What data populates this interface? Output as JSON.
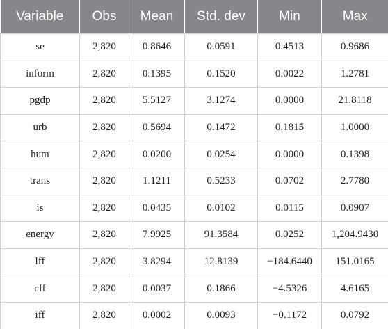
{
  "table": {
    "header": [
      "Variable",
      "Obs",
      "Mean",
      "Std. dev",
      "Min",
      "Max"
    ],
    "rows": [
      [
        "se",
        "2,820",
        "0.8646",
        "0.0591",
        "0.4513",
        "0.9686"
      ],
      [
        "inform",
        "2,820",
        "0.1395",
        "0.1520",
        "0.0022",
        "1.2781"
      ],
      [
        "pgdp",
        "2,820",
        "5.5127",
        "3.1274",
        "0.0000",
        "21.8118"
      ],
      [
        "urb",
        "2,820",
        "0.5694",
        "0.1472",
        "0.1815",
        "1.0000"
      ],
      [
        "hum",
        "2,820",
        "0.0200",
        "0.0254",
        "0.0000",
        "0.1398"
      ],
      [
        "trans",
        "2,820",
        "1.1211",
        "0.5233",
        "0.0702",
        "2.7780"
      ],
      [
        "is",
        "2,820",
        "0.0435",
        "0.0102",
        "0.0115",
        "0.0907"
      ],
      [
        "energy",
        "2,820",
        "7.9925",
        "91.3584",
        "0.0252",
        "1,204.9430"
      ],
      [
        "lff",
        "2,820",
        "3.8294",
        "12.8139",
        "−184.6440",
        "151.0165"
      ],
      [
        "cff",
        "2,820",
        "0.0037",
        "0.1866",
        "−4.5326",
        "4.6165"
      ],
      [
        "iff",
        "2,820",
        "0.0002",
        "0.0093",
        "−0.1172",
        "0.0792"
      ]
    ]
  }
}
